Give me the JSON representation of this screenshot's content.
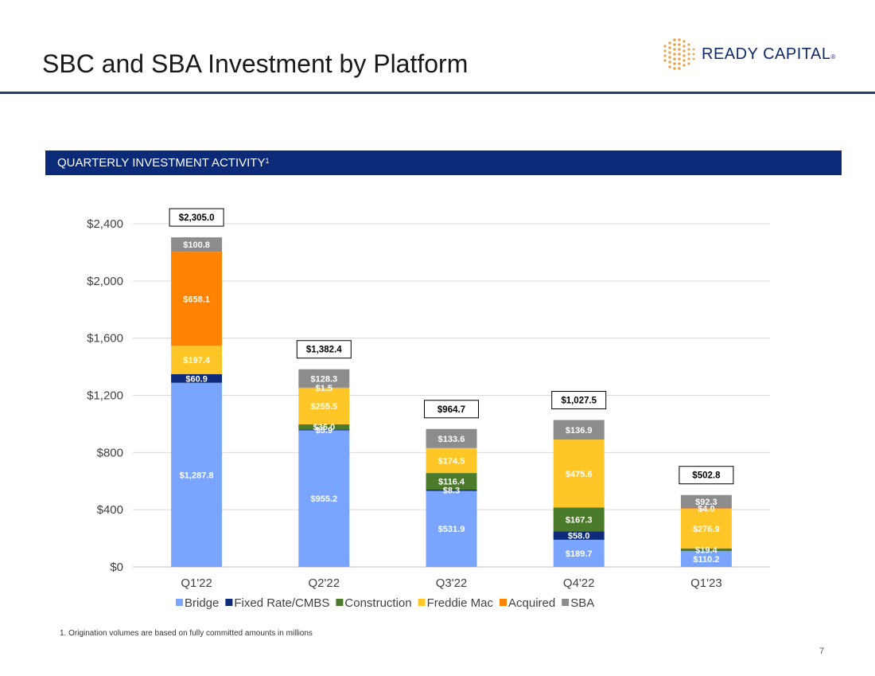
{
  "page": {
    "title": "SBC and SBA Investment by Platform",
    "logo_text": "READY CAPITAL",
    "logo_mark": "®",
    "section_label": "QUARTERLY INVESTMENT ACTIVITY",
    "section_sup": "1",
    "footnote": "1.    Origination volumes are based on fully committed amounts in millions",
    "page_number": "7"
  },
  "colors": {
    "banner": "#0b2a78",
    "title_rule": "#1f3b7a",
    "logo_dots": "#e8a44a",
    "logo_text": "#0e2a6a"
  },
  "chart_data": {
    "type": "bar",
    "stacked": true,
    "categories": [
      "Q1'22",
      "Q2'22",
      "Q3'22",
      "Q4'22",
      "Q1'23"
    ],
    "ylim": [
      0,
      2400
    ],
    "yticks": [
      0,
      400,
      800,
      1200,
      1600,
      2000,
      2400
    ],
    "ytick_labels": [
      "$0",
      "$400",
      "$800",
      "$1,200",
      "$1,600",
      "$2,000",
      "$2,400"
    ],
    "grid": true,
    "legend_position": "bottom",
    "series": [
      {
        "name": "Bridge",
        "color": "#7aa5ff",
        "values": [
          1287.8,
          955.2,
          531.9,
          189.7,
          110.2
        ],
        "labels": [
          "$1,287.8",
          "$955.2",
          "$531.9",
          "$189.7",
          "$110.2"
        ]
      },
      {
        "name": "Fixed Rate/CMBS",
        "color": "#0d2b7a",
        "values": [
          60.9,
          5.9,
          8.3,
          58.0,
          0
        ],
        "labels": [
          "$60.9",
          "$5.9",
          "$8.3",
          "$58.0",
          ""
        ]
      },
      {
        "name": "Construction",
        "color": "#4b7a2a",
        "values": [
          0,
          36.0,
          116.4,
          167.3,
          19.4
        ],
        "labels": [
          "",
          "$36.0",
          "$116.4",
          "$167.3",
          "$19.4"
        ]
      },
      {
        "name": "Freddie Mac",
        "color": "#ffc628",
        "values": [
          197.4,
          255.5,
          174.5,
          475.6,
          276.9
        ],
        "labels": [
          "$197.4",
          "$255.5",
          "$174.5",
          "$475.6",
          "$276.9"
        ]
      },
      {
        "name": "Acquired",
        "color": "#ff8200",
        "values": [
          658.1,
          1.5,
          0,
          0,
          4.0
        ],
        "labels": [
          "$658.1",
          "$1.5",
          "",
          "",
          "$4.0"
        ]
      },
      {
        "name": "SBA",
        "color": "#8c8c8c",
        "values": [
          100.8,
          128.3,
          133.6,
          136.9,
          92.3
        ],
        "labels": [
          "$100.8",
          "$128.3",
          "$133.6",
          "$136.9",
          "$92.3"
        ]
      }
    ],
    "totals": [
      "$2,305.0",
      "$1,382.4",
      "$964.7",
      "$1,027.5",
      "$502.8"
    ]
  }
}
